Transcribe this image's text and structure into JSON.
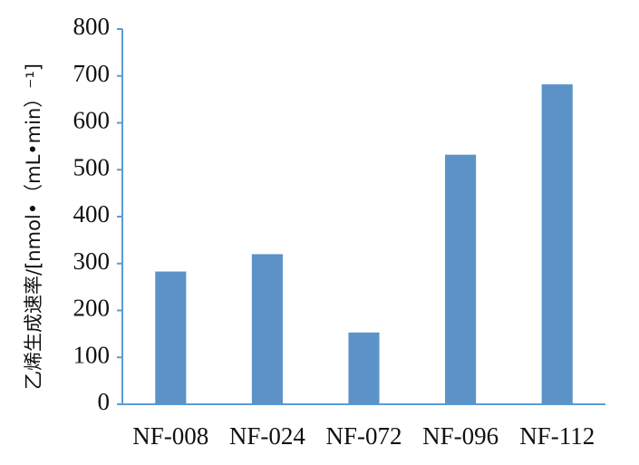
{
  "chart_data": {
    "type": "bar",
    "y_label": "乙烯生成速率/[nmol•（mL•min）⁻¹]",
    "categories": [
      "NF-008",
      "NF-024",
      "NF-072",
      "NF-096",
      "NF-112"
    ],
    "values": [
      283,
      320,
      153,
      532,
      682
    ],
    "color": "#5b93c9",
    "ylim": [
      0,
      800
    ],
    "yticks": [
      0,
      100,
      200,
      300,
      400,
      500,
      600,
      700,
      800
    ],
    "grid": false
  }
}
